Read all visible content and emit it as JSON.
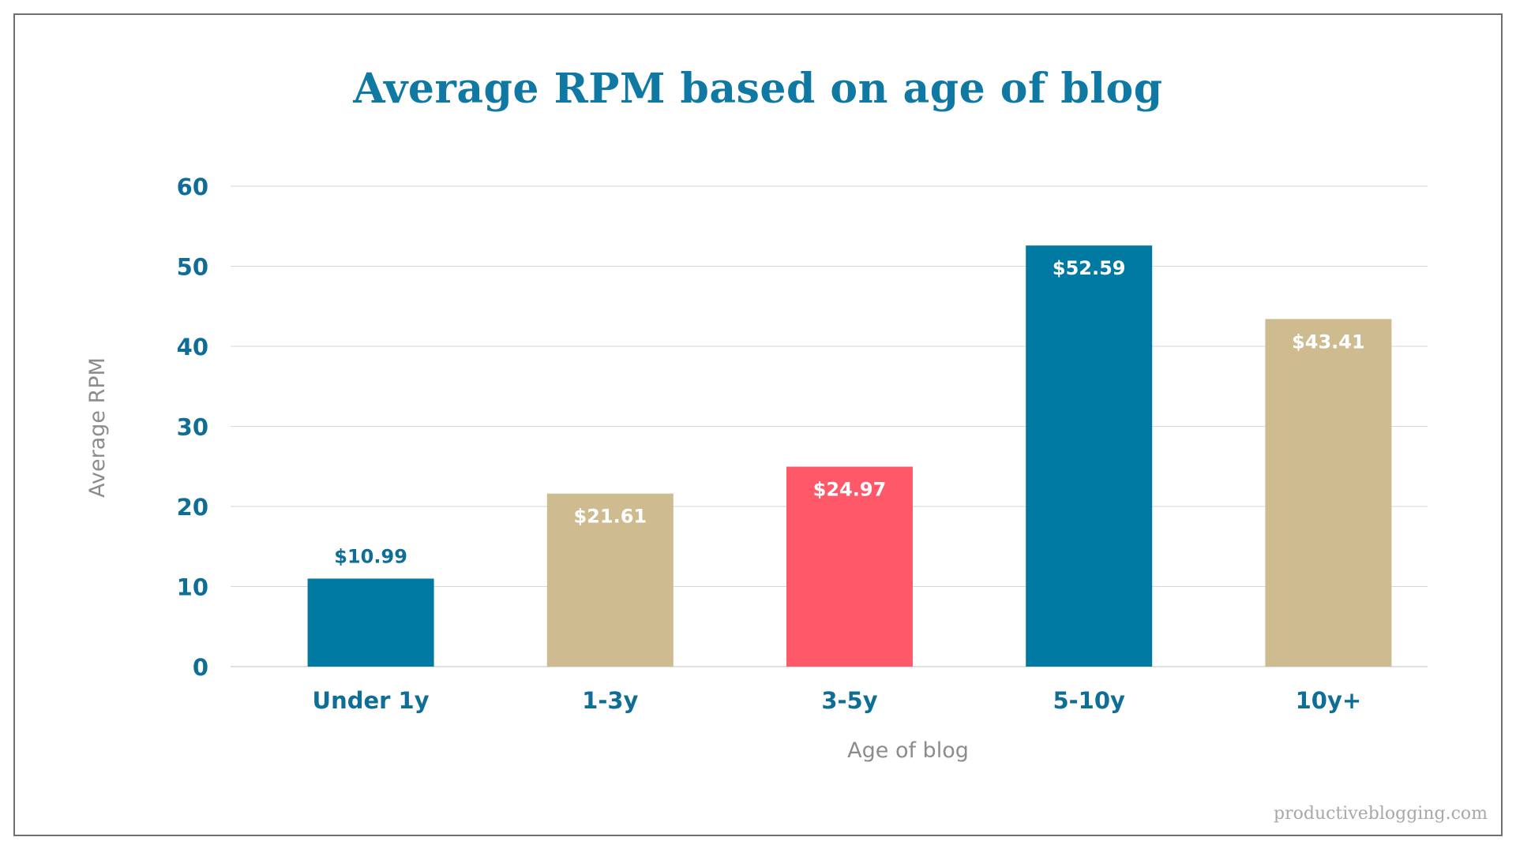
{
  "colors": {
    "blue": "#0079a3",
    "tan": "#cebb8f",
    "red": "#ff5868",
    "axis_text": "#0f6e96",
    "axis_label": "#8c8c8c",
    "grid": "#d6d6d6",
    "label_on_bar": "#ffffff"
  },
  "chart_data": {
    "type": "bar",
    "title": "Average RPM based on age of blog",
    "xlabel": "Age of blog",
    "ylabel": "Average RPM",
    "ylim": [
      0,
      60
    ],
    "yticks": [
      0,
      10,
      20,
      30,
      40,
      50,
      60
    ],
    "grid": true,
    "categories": [
      "Under 1y",
      "1-3y",
      "3-5y",
      "5-10y",
      "10y+"
    ],
    "values": [
      10.99,
      21.61,
      24.97,
      52.59,
      43.41
    ],
    "data_labels": [
      "$10.99",
      "$21.61",
      "$24.97",
      "$52.59",
      "$43.41"
    ],
    "bar_colors": [
      "blue",
      "tan",
      "red",
      "blue",
      "tan"
    ],
    "label_positions": [
      "above",
      "inside",
      "inside",
      "inside",
      "inside"
    ]
  },
  "watermark": "productiveblogging.com"
}
